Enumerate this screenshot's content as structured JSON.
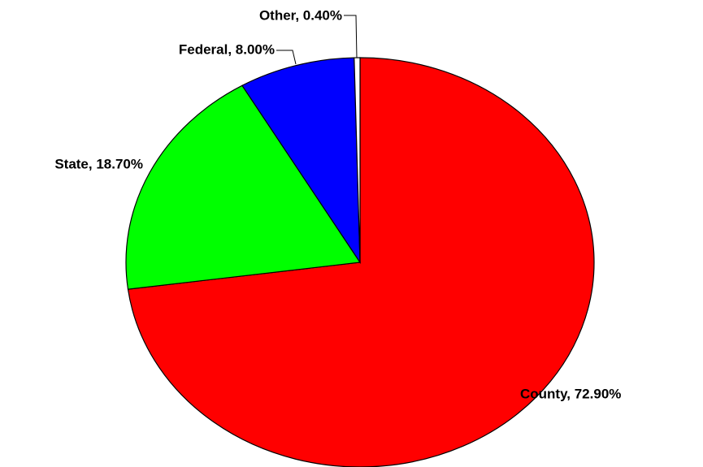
{
  "chart_data": {
    "type": "pie",
    "values": [
      72.9,
      18.7,
      8.0,
      0.4
    ],
    "value_labels": [
      "County, 72.90%",
      "State, 18.70%",
      "Federal, 8.00%",
      "Other, 0.40%"
    ],
    "colors": [
      "#ff0000",
      "#00ff00",
      "#0000ff",
      "#ffffff"
    ]
  }
}
